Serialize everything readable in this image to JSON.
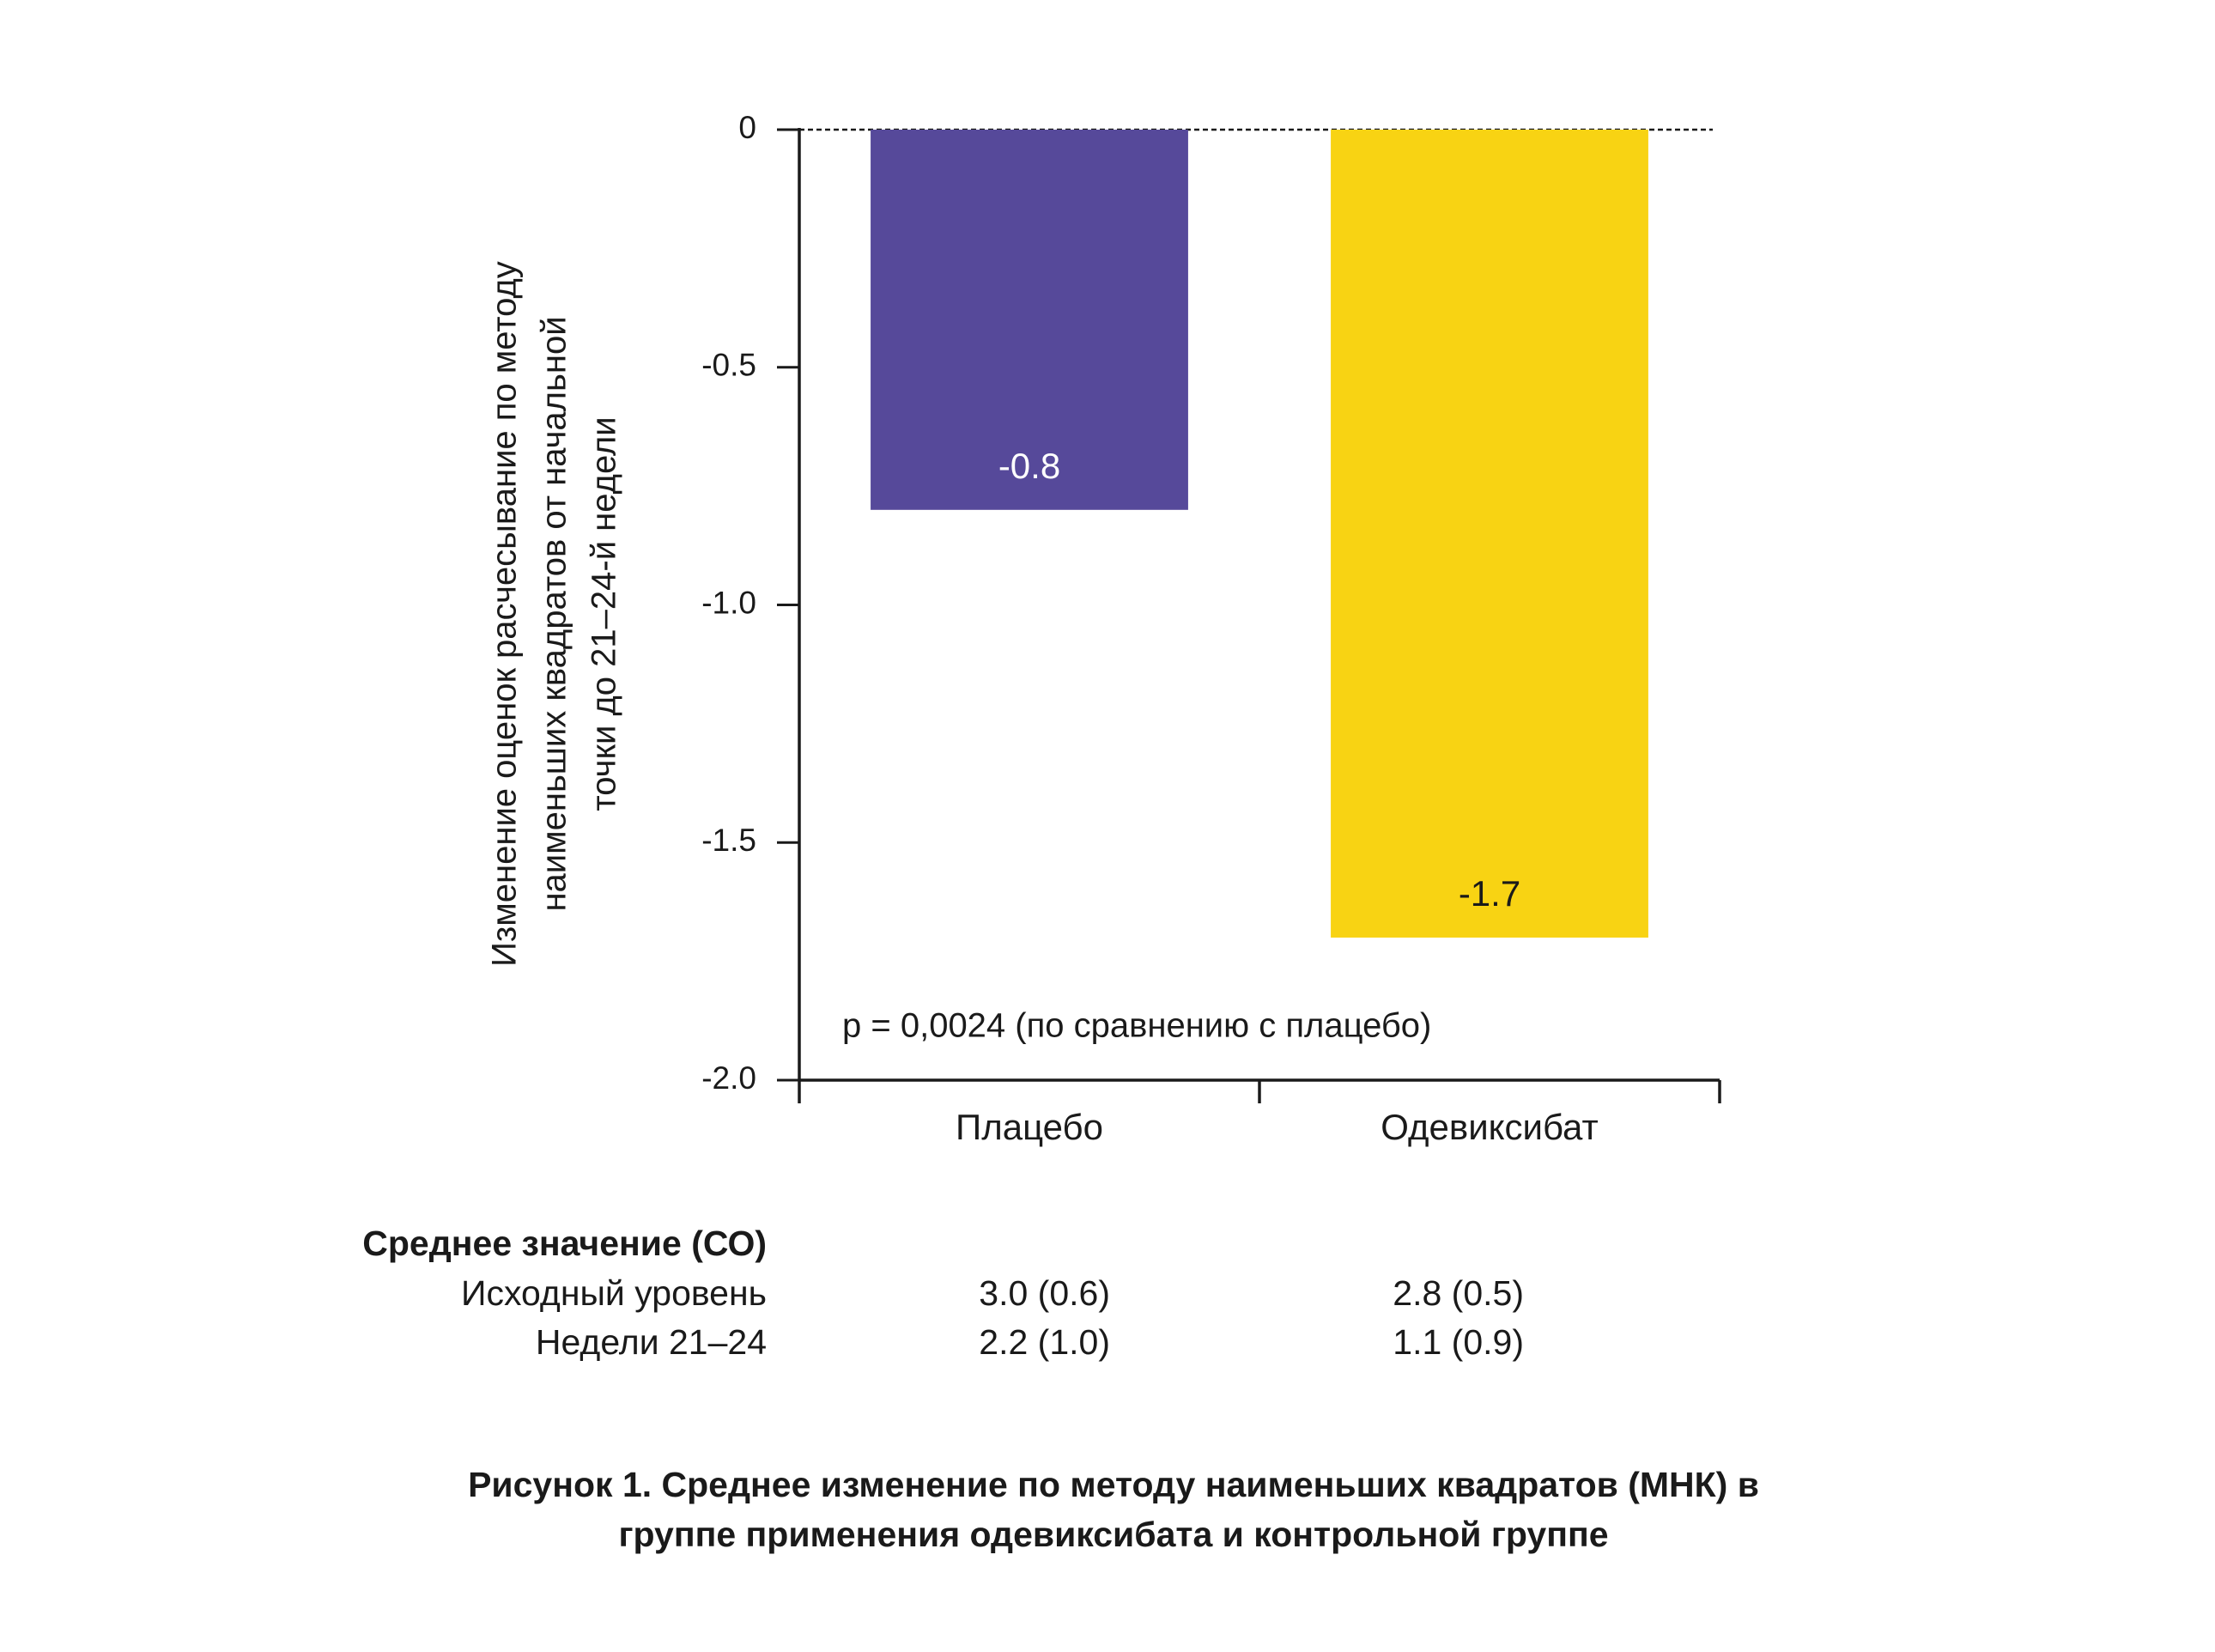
{
  "chart_data": {
    "type": "bar",
    "ylabel": [
      "Изменение оценок расчесывание по методу",
      "наименьших квадратов от начальной",
      "точки до 21–24-й недели"
    ],
    "categories": [
      "Плацебо",
      "Одевиксибат"
    ],
    "values": [
      -0.8,
      -1.7
    ],
    "colors": [
      "#56499a",
      "#f8d313"
    ],
    "value_label_colors": [
      "#ffffff",
      "#1a1a1a"
    ],
    "ylim": [
      -2.0,
      0
    ],
    "yticks": [
      0,
      -0.5,
      {
        "value": -1.0,
        "label": "-1.0"
      },
      -1.5,
      {
        "value": -2.0,
        "label": "-2.0"
      }
    ],
    "annotation": "p = 0,0024 (по сравнению с плацебо)"
  },
  "table": {
    "title": "Среднее значение (СО)",
    "rows": [
      [
        "Исходный уровень",
        "3.0 (0.6)",
        "2.8 (0.5)"
      ],
      [
        "Недели 21–24",
        "2.2 (1.0)",
        "1.1 (0.9)"
      ]
    ]
  },
  "caption": [
    "Рисунок 1. Среднее изменение по методу наименьших квадратов (МНК) в",
    "группе применения одевиксибата и контрольной группе"
  ]
}
